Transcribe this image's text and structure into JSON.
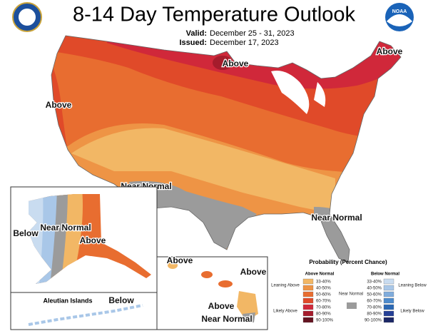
{
  "header": {
    "title": "8-14 Day Temperature Outlook",
    "valid_label": "Valid:",
    "valid_dates": "December 25 - 31, 2023",
    "issued_label": "Issued:",
    "issued_date": "December 17, 2023",
    "noaa_logo": "NOAA"
  },
  "map_labels": {
    "conus_north": "Above",
    "conus_west": "Above",
    "conus_northeast": "Above",
    "conus_southwest": "Near Normal",
    "conus_southeast": "Near Normal",
    "alaska_west": "Below",
    "alaska_center": "Near Normal",
    "alaska_east": "Above",
    "aleutian_title": "Aleutian Islands",
    "aleutian_below": "Below",
    "hawaii_west": "Above",
    "hawaii_east": "Above",
    "hawaii_big": "Above",
    "hawaii_near": "Near Normal"
  },
  "legend": {
    "title": "Probability (Percent Chance)",
    "above_header": "Above Normal",
    "below_header": "Below Normal",
    "leaning_above": "Leaning Above",
    "likely_above": "Likely Above",
    "near_normal": "Near Normal",
    "leaning_below": "Leaning Below",
    "likely_below": "Likely Below",
    "near_color": "#9b9b9b",
    "above": [
      {
        "label": "33-40%",
        "color": "#f2b765"
      },
      {
        "label": "40-50%",
        "color": "#ee9445"
      },
      {
        "label": "50-60%",
        "color": "#e86d30"
      },
      {
        "label": "60-70%",
        "color": "#e04a29"
      },
      {
        "label": "70-80%",
        "color": "#d0283a"
      },
      {
        "label": "80-90%",
        "color": "#a51c2c"
      },
      {
        "label": "90-100%",
        "color": "#641320"
      }
    ],
    "below": [
      {
        "label": "33-40%",
        "color": "#c9dcf0"
      },
      {
        "label": "40-50%",
        "color": "#a9c7e8"
      },
      {
        "label": "50-60%",
        "color": "#80acdc"
      },
      {
        "label": "60-70%",
        "color": "#4d8bcc"
      },
      {
        "label": "70-80%",
        "color": "#2c68b4"
      },
      {
        "label": "80-90%",
        "color": "#243f96"
      },
      {
        "label": "90-100%",
        "color": "#1b2766"
      }
    ]
  }
}
